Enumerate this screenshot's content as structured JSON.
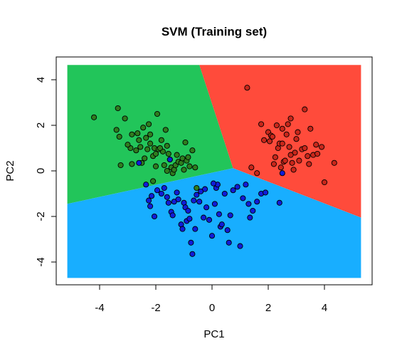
{
  "chart_data": {
    "type": "scatter",
    "title": "SVM (Training set)",
    "xlabel": "PC1",
    "ylabel": "PC2",
    "xlim": [
      -5.15,
      5.3
    ],
    "ylim": [
      -4.7,
      4.65
    ],
    "xticks": [
      "-4",
      "-2",
      "0",
      "2",
      "4"
    ],
    "yticks": [
      "-4",
      "-2",
      "0",
      "2",
      "4"
    ],
    "grid": false,
    "regions": [
      {
        "class": "1",
        "color": "#22C55A",
        "polygon": [
          [
            -5.15,
            4.65
          ],
          [
            -0.45,
            4.65
          ],
          [
            0.75,
            0.12
          ],
          [
            -5.15,
            -1.45
          ]
        ]
      },
      {
        "class": "2",
        "color": "#FF4B3B",
        "polygon": [
          [
            -0.45,
            4.65
          ],
          [
            5.3,
            4.65
          ],
          [
            5.3,
            -2.05
          ],
          [
            0.75,
            0.12
          ]
        ]
      },
      {
        "class": "3",
        "color": "#18AEFF",
        "polygon": [
          [
            -5.15,
            -1.45
          ],
          [
            0.75,
            0.12
          ],
          [
            5.3,
            -2.05
          ],
          [
            5.3,
            -4.7
          ],
          [
            -5.15,
            -4.7
          ]
        ]
      }
    ],
    "series": [
      {
        "color": "#2E7D1E",
        "x": [
          -4.2,
          -3.4,
          -3.3,
          -3.1,
          -2.9,
          -2.85,
          -2.6,
          -2.55,
          -2.45,
          -2.4,
          -2.35,
          -2.3,
          -2.25,
          -2.2,
          -2.1,
          -2.05,
          -2.0,
          -1.95,
          -1.9,
          -1.8,
          -1.75,
          -1.7,
          -1.65,
          -1.6,
          -1.55,
          -1.5,
          -1.45,
          -1.4,
          -1.35,
          -1.3,
          -1.25,
          -1.2,
          -1.1,
          -1.05,
          -1.0,
          -0.95,
          -0.9,
          -0.85,
          -0.8,
          -0.7,
          -0.6,
          -0.55,
          -3.35,
          -3.0,
          -2.7,
          -2.65,
          -2.5,
          -2.2,
          -2.0,
          -1.85,
          -3.25,
          -2.85,
          -2.1,
          -1.6
        ],
        "y": [
          2.35,
          1.8,
          1.5,
          2.3,
          1.0,
          0.3,
          1.35,
          1.05,
          1.9,
          0.55,
          1.45,
          0.95,
          2.05,
          1.2,
          0.65,
          1.0,
          0.2,
          2.5,
          0.95,
          1.35,
          0.85,
          0.25,
          1.8,
          1.1,
          0.75,
          0.5,
          0.15,
          -0.1,
          0.05,
          0.25,
          0.7,
          0.4,
          0.35,
          0.55,
          0.05,
          1.25,
          0.45,
          0.6,
          0.2,
          0.9,
          0.15,
          -0.75,
          2.75,
          1.15,
          0.9,
          1.65,
          0.35,
          1.6,
          0.75,
          1.0,
          0.25,
          1.6,
          -0.45,
          0.0
        ]
      },
      {
        "color": "#C8261A",
        "x": [
          1.25,
          1.6,
          1.75,
          1.85,
          2.0,
          2.05,
          2.1,
          2.2,
          2.25,
          2.3,
          2.35,
          2.4,
          2.45,
          2.5,
          2.55,
          2.6,
          2.65,
          2.7,
          2.75,
          2.8,
          2.85,
          2.9,
          2.95,
          3.0,
          3.05,
          3.1,
          3.2,
          3.3,
          3.4,
          3.5,
          3.6,
          3.7,
          3.75,
          3.9,
          4.0,
          4.35,
          1.4,
          2.15,
          2.8,
          3.3,
          3.45,
          2.5
        ],
        "y": [
          3.65,
          -0.1,
          2.05,
          1.35,
          1.7,
          1.3,
          1.55,
          0.3,
          0.6,
          2.0,
          1.0,
          1.2,
          0.15,
          1.85,
          0.4,
          0.45,
          1.6,
          2.05,
          1.05,
          2.3,
          0.35,
          0.05,
          0.8,
          1.4,
          1.7,
          0.45,
          0.95,
          2.7,
          0.65,
          1.85,
          0.7,
          1.15,
          0.75,
          1.05,
          -0.5,
          0.35,
          0.15,
          1.5,
          0.7,
          1.0,
          0.3,
          1.2
        ]
      },
      {
        "color": "#101CD8",
        "x": [
          -2.6,
          -2.35,
          -2.25,
          -2.2,
          -2.15,
          -2.05,
          -1.95,
          -1.8,
          -1.7,
          -1.6,
          -1.55,
          -1.45,
          -1.4,
          -1.35,
          -1.25,
          -1.2,
          -1.1,
          -1.05,
          -1.0,
          -0.95,
          -0.9,
          -0.85,
          -0.8,
          -0.75,
          -0.7,
          -0.6,
          -0.55,
          -0.45,
          -0.4,
          -0.3,
          -0.2,
          -0.1,
          0.0,
          0.1,
          0.15,
          0.2,
          0.25,
          0.3,
          0.35,
          0.45,
          0.55,
          0.6,
          0.65,
          0.75,
          0.9,
          1.0,
          1.1,
          1.2,
          1.3,
          1.35,
          1.45,
          1.6,
          1.75,
          1.9,
          2.4,
          2.5,
          -1.5,
          -0.65,
          0.05,
          -0.25
        ],
        "y": [
          0.35,
          -0.6,
          -1.3,
          -1.55,
          -1.1,
          -2.0,
          -0.85,
          -1.0,
          -0.75,
          -1.15,
          -1.4,
          -1.8,
          -1.95,
          -1.35,
          -0.95,
          -1.25,
          -2.35,
          -2.55,
          -1.4,
          -1.6,
          -2.2,
          -1.75,
          -2.1,
          -3.15,
          -3.65,
          -2.55,
          -1.05,
          -1.35,
          -0.9,
          -2.05,
          -1.6,
          -2.15,
          -2.85,
          -1.45,
          -0.75,
          -0.6,
          -1.9,
          -2.45,
          -2.35,
          -1.0,
          -2.6,
          -3.15,
          -1.95,
          -0.85,
          -0.7,
          -3.3,
          -1.2,
          -0.6,
          -1.45,
          -2.05,
          -1.75,
          -1.35,
          -1.0,
          -0.95,
          -1.4,
          -0.1,
          0.5,
          -1.3,
          -0.55,
          -0.8
        ]
      }
    ]
  }
}
